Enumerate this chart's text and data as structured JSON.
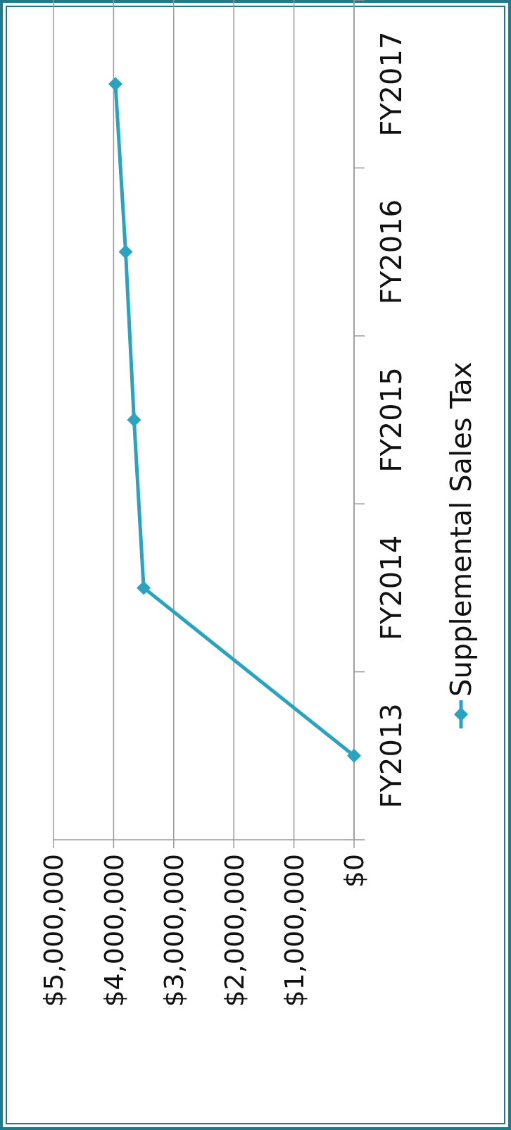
{
  "chart_data": {
    "type": "line",
    "orientation": "horizontal",
    "categories": [
      "FY2017",
      "FY2016",
      "FY2015",
      "FY2014",
      "FY2013"
    ],
    "series": [
      {
        "name": "Supplemental Sales Tax",
        "color": "#2aa3c0",
        "values": [
          3970000,
          3800000,
          3660000,
          3500000,
          0
        ]
      }
    ],
    "xlim": [
      5000000,
      0
    ],
    "xticks": [
      {
        "value": 0,
        "label": "$0"
      },
      {
        "value": 1000000,
        "label": "$1,000,000"
      },
      {
        "value": 2000000,
        "label": "$2,000,000"
      },
      {
        "value": 3000000,
        "label": "$3,000,000"
      },
      {
        "value": 4000000,
        "label": "$4,000,000"
      },
      {
        "value": 5000000,
        "label": "$5,000,000"
      }
    ],
    "grid": "x",
    "legend": "right",
    "marker": "diamond",
    "line_style": "solid"
  }
}
